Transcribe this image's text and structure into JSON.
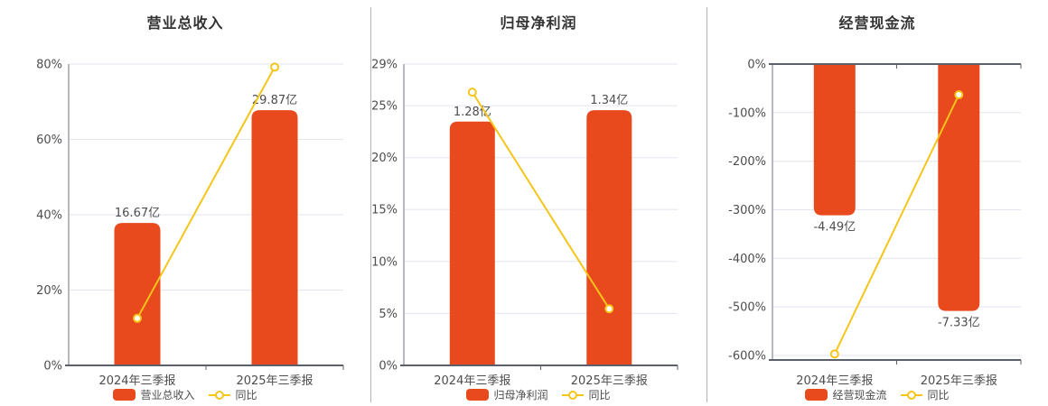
{
  "colors": {
    "bar": "#e8491d",
    "line": "#f5c51a",
    "marker_fill": "#ffffff",
    "title_text": "#333333",
    "axis_text": "#4d4d4d",
    "grid_line": "#e3e6ef",
    "zero_axis_line": "#5c6068",
    "y_axis_line": "#6e7079",
    "panel_divider": "#b3b3b3",
    "background": "#ffffff"
  },
  "chart_data": [
    {
      "type": "bar",
      "title": "营业总收入",
      "categories": [
        "2024年三季报",
        "2025年三季报"
      ],
      "bar_series": {
        "name": "营业总收入",
        "unit": "亿",
        "values": [
          16.67,
          29.87
        ],
        "labels": [
          "16.67亿",
          "29.87亿"
        ]
      },
      "line_series": {
        "name": "同比",
        "unit": "%",
        "values": [
          12.5,
          79.18
        ]
      },
      "y_axis": {
        "min": 0,
        "max": 80,
        "ticks": [
          {
            "value": 80,
            "label": "80%"
          },
          {
            "value": 60,
            "label": "60%"
          },
          {
            "value": 40,
            "label": "40%"
          },
          {
            "value": 20,
            "label": "20%"
          },
          {
            "value": 0,
            "label": "0%"
          }
        ]
      },
      "legend": [
        "营业总收入",
        "同比"
      ],
      "value_label_position": "above",
      "grid": true,
      "legend_position": "bottom"
    },
    {
      "type": "bar",
      "title": "归母净利润",
      "categories": [
        "2024年三季报",
        "2025年三季报"
      ],
      "bar_series": {
        "name": "归母净利润",
        "unit": "亿",
        "values": [
          1.28,
          1.34
        ],
        "labels": [
          "1.28亿",
          "1.34亿"
        ]
      },
      "line_series": {
        "name": "同比",
        "unit": "%",
        "values": [
          26.3,
          5.45
        ]
      },
      "y_axis": {
        "min": 0,
        "max": 29,
        "ticks": [
          {
            "value": 29,
            "label": "29%"
          },
          {
            "value": 25,
            "label": "25%"
          },
          {
            "value": 20,
            "label": "20%"
          },
          {
            "value": 15,
            "label": "15%"
          },
          {
            "value": 10,
            "label": "10%"
          },
          {
            "value": 5,
            "label": "5%"
          },
          {
            "value": 0,
            "label": "0%"
          }
        ]
      },
      "legend": [
        "归母净利润",
        "同比"
      ],
      "value_label_position": "above",
      "grid": true,
      "legend_position": "bottom"
    },
    {
      "type": "bar",
      "title": "经营现金流",
      "categories": [
        "2024年三季报",
        "2025年三季报"
      ],
      "bar_series": {
        "name": "经营现金流",
        "unit": "亿",
        "values": [
          -4.49,
          -7.33
        ],
        "labels": [
          "-4.49亿",
          "-7.33亿"
        ]
      },
      "line_series": {
        "name": "同比",
        "unit": "%",
        "values": [
          -597,
          -63.25
        ]
      },
      "y_axis": {
        "min": -600,
        "max": 0,
        "ticks": [
          {
            "value": 0,
            "label": "0%"
          },
          {
            "value": -100,
            "label": "-100%"
          },
          {
            "value": -200,
            "label": "-200%"
          },
          {
            "value": -300,
            "label": "-300%"
          },
          {
            "value": -400,
            "label": "-400%"
          },
          {
            "value": -500,
            "label": "-500%"
          },
          {
            "value": -600,
            "label": "-600%"
          }
        ]
      },
      "legend": [
        "经营现金流",
        "同比"
      ],
      "value_label_position": "below",
      "grid": true,
      "legend_position": "bottom"
    }
  ]
}
